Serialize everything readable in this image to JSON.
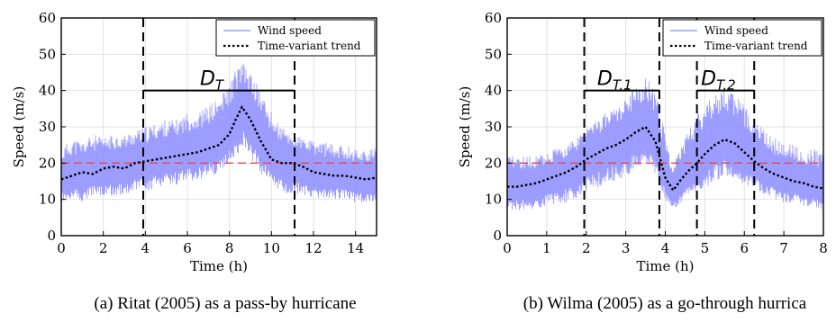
{
  "chart_data": [
    {
      "type": "line",
      "caption": "(a) Ritat (2005) as a pass-by hurricane",
      "xlabel": "Time (h)",
      "ylabel": "Speed (m/s)",
      "xlim": [
        0,
        15
      ],
      "ylim": [
        0,
        60
      ],
      "xticks": [
        0,
        2,
        4,
        6,
        8,
        10,
        12,
        14
      ],
      "yticks": [
        0,
        10,
        20,
        30,
        40,
        50,
        60
      ],
      "grid": true,
      "legend": "top-right",
      "threshold": 20,
      "durations": [
        {
          "label": "D",
          "sub": "T",
          "start": 3.9,
          "end": 11.1,
          "level": 40
        }
      ],
      "series": [
        {
          "name": "Wind speed",
          "type": "band",
          "color": "#8c8cff",
          "x": [
            0,
            0.5,
            1,
            1.5,
            2,
            2.5,
            3,
            3.5,
            4,
            4.5,
            5,
            5.5,
            6,
            6.5,
            7,
            7.5,
            8,
            8.3,
            8.6,
            9,
            9.5,
            10,
            10.5,
            11,
            11.5,
            12,
            12.5,
            13,
            13.5,
            14,
            14.5,
            15
          ],
          "upper": [
            24,
            27,
            26,
            28,
            27,
            28,
            28,
            29,
            30,
            31,
            32,
            32,
            34,
            34,
            36,
            38,
            42,
            46,
            48,
            45,
            40,
            34,
            30,
            28,
            27,
            26,
            26,
            25,
            25,
            24,
            24,
            24
          ],
          "lower": [
            9,
            10,
            9,
            11,
            10,
            11,
            11,
            12,
            12,
            13,
            14,
            14,
            15,
            15,
            16,
            17,
            20,
            22,
            24,
            21,
            17,
            14,
            12,
            11,
            11,
            10,
            10,
            10,
            10,
            9,
            9,
            9
          ]
        },
        {
          "name": "Time-variant trend",
          "type": "dotted",
          "color": "#000000",
          "x": [
            0,
            0.5,
            1,
            1.5,
            2,
            2.5,
            3,
            3.5,
            4,
            4.5,
            5,
            5.5,
            6,
            6.5,
            7,
            7.5,
            8,
            8.3,
            8.6,
            9,
            9.5,
            10,
            10.5,
            11,
            11.5,
            12,
            12.5,
            13,
            13.5,
            14,
            14.5,
            15
          ],
          "y": [
            15.5,
            16.5,
            17.5,
            17,
            18.5,
            19,
            18.5,
            20,
            20.5,
            21,
            21.5,
            22,
            22.5,
            23,
            24,
            25,
            28,
            32,
            35.5,
            32,
            26,
            21,
            20,
            20,
            19,
            17.5,
            17,
            16.5,
            16.5,
            16,
            15.5,
            16
          ]
        }
      ]
    },
    {
      "type": "line",
      "caption": "(b) Wilma (2005) as a go-through hurrica",
      "xlabel": "Time (h)",
      "ylabel": "Speed (m/s)",
      "xlim": [
        0,
        8
      ],
      "ylim": [
        0,
        60
      ],
      "xticks": [
        0,
        1,
        2,
        3,
        4,
        5,
        6,
        7,
        8
      ],
      "yticks": [
        0,
        10,
        20,
        30,
        40,
        50,
        60
      ],
      "grid": true,
      "legend": "top-right",
      "threshold": 20,
      "durations": [
        {
          "label": "D",
          "sub": "T,1",
          "start": 1.95,
          "end": 3.85,
          "level": 40
        },
        {
          "label": "D",
          "sub": "T,2",
          "start": 4.8,
          "end": 6.25,
          "level": 40
        }
      ],
      "series": [
        {
          "name": "Wind speed",
          "type": "band",
          "color": "#8c8cff",
          "x": [
            0,
            0.25,
            0.5,
            0.75,
            1,
            1.25,
            1.5,
            1.75,
            2,
            2.25,
            2.5,
            2.75,
            3,
            3.25,
            3.5,
            3.75,
            4,
            4.2,
            4.4,
            4.6,
            4.8,
            5,
            5.25,
            5.5,
            5.75,
            6,
            6.25,
            6.5,
            6.75,
            7,
            7.25,
            7.5,
            7.75,
            8
          ],
          "upper": [
            22,
            22,
            22,
            22,
            23,
            24,
            25,
            27,
            30,
            32,
            34,
            36,
            38,
            41,
            44,
            40,
            28,
            20,
            24,
            30,
            34,
            37,
            39,
            40,
            39,
            36,
            33,
            30,
            27,
            26,
            25,
            24,
            24,
            23
          ],
          "lower": [
            7,
            7,
            7,
            7,
            8,
            8,
            9,
            10,
            12,
            13,
            14,
            15,
            16,
            18,
            20,
            17,
            10,
            7,
            9,
            11,
            12,
            13,
            15,
            16,
            16,
            14,
            13,
            11,
            10,
            9,
            9,
            8,
            8,
            7
          ]
        },
        {
          "name": "Time-variant trend",
          "type": "dotted",
          "color": "#000000",
          "x": [
            0,
            0.25,
            0.5,
            0.75,
            1,
            1.25,
            1.5,
            1.75,
            2,
            2.25,
            2.5,
            2.75,
            3,
            3.25,
            3.5,
            3.75,
            4,
            4.2,
            4.4,
            4.6,
            4.8,
            5,
            5.25,
            5.5,
            5.75,
            6,
            6.25,
            6.5,
            6.75,
            7,
            7.25,
            7.5,
            7.75,
            8
          ],
          "y": [
            13.5,
            13.5,
            14,
            14.5,
            15.5,
            16.5,
            17.5,
            19,
            21,
            22.5,
            24,
            25,
            26.5,
            28.5,
            30,
            26,
            16,
            12.5,
            15.5,
            18,
            20,
            22.5,
            25,
            26.5,
            25.5,
            23,
            20.5,
            18.5,
            17,
            16,
            15,
            14.5,
            13.5,
            13
          ]
        }
      ]
    }
  ]
}
